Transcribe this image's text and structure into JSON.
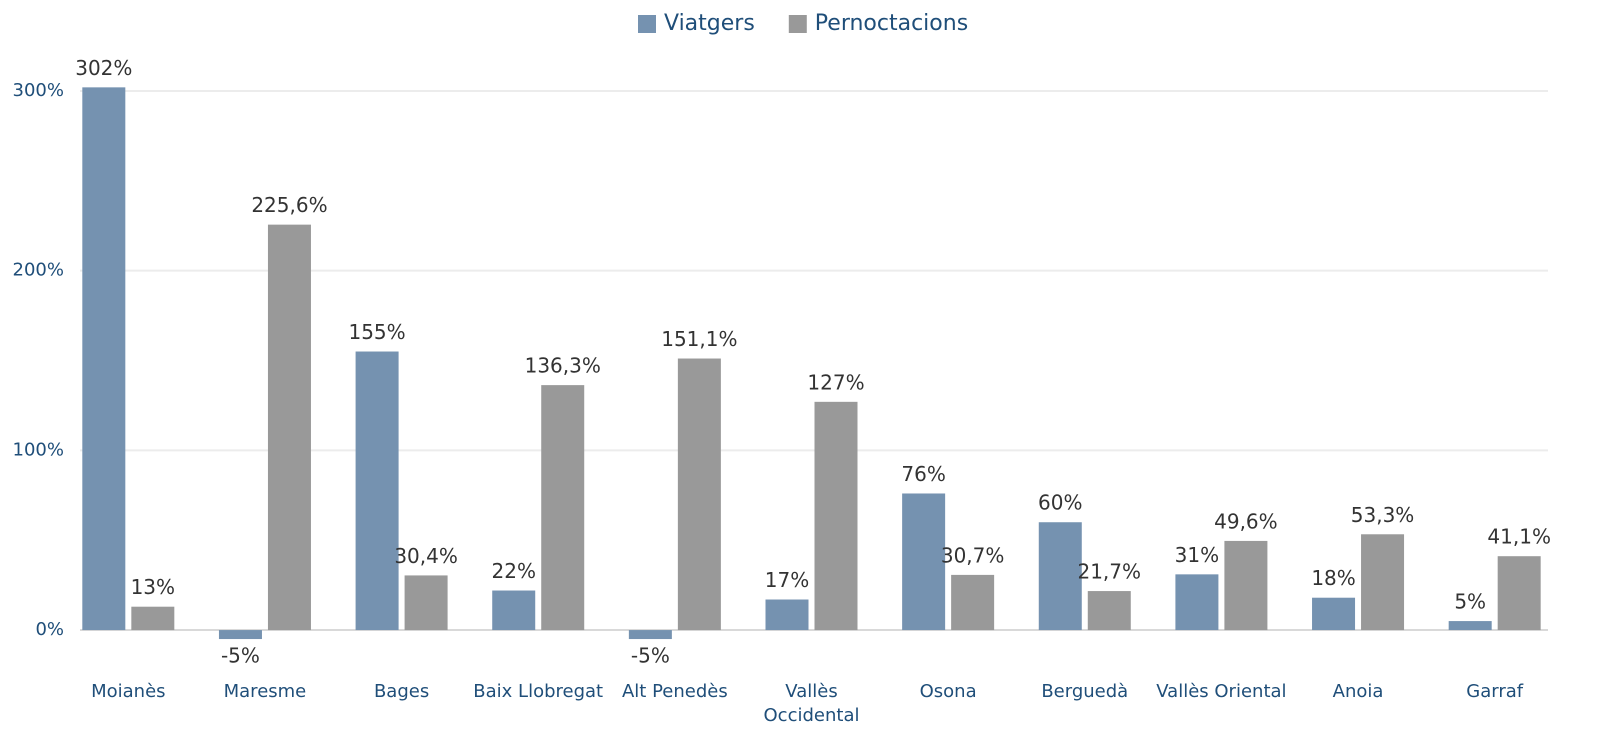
{
  "chart_data": {
    "type": "bar",
    "categories": [
      "Moianès",
      "Maresme",
      "Bages",
      "Baix Llobregat",
      "Alt Penedès",
      "Vallès Occidental",
      "Osona",
      "Berguedà",
      "Vallès Oriental",
      "Anoia",
      "Garraf"
    ],
    "series": [
      {
        "name": "Viatgers",
        "color": "#7592b0",
        "values": [
          302,
          -5,
          155,
          22,
          -5,
          17,
          76,
          60,
          31,
          18,
          5
        ],
        "value_labels": [
          "302%",
          "-5%",
          "155%",
          "22%",
          "-5%",
          "17%",
          "76%",
          "60%",
          "31%",
          "18%",
          "5%"
        ]
      },
      {
        "name": "Pernoctacions",
        "color": "#999999",
        "values": [
          13,
          225.6,
          30.4,
          136.3,
          151.1,
          127,
          30.7,
          21.7,
          49.6,
          53.3,
          41.1
        ],
        "value_labels": [
          "13%",
          "225,6%",
          "30,4%",
          "136,3%",
          "151,1%",
          "127%",
          "30,7%",
          "21,7%",
          "49,6%",
          "53,3%",
          "41,1%"
        ]
      }
    ],
    "ylim": [
      -20,
      320
    ],
    "yticks": [
      {
        "value": 0,
        "label": "0%"
      },
      {
        "value": 100,
        "label": "100%"
      },
      {
        "value": 200,
        "label": "200%"
      },
      {
        "value": 300,
        "label": "300%"
      }
    ],
    "grid": true,
    "legend": "top"
  }
}
